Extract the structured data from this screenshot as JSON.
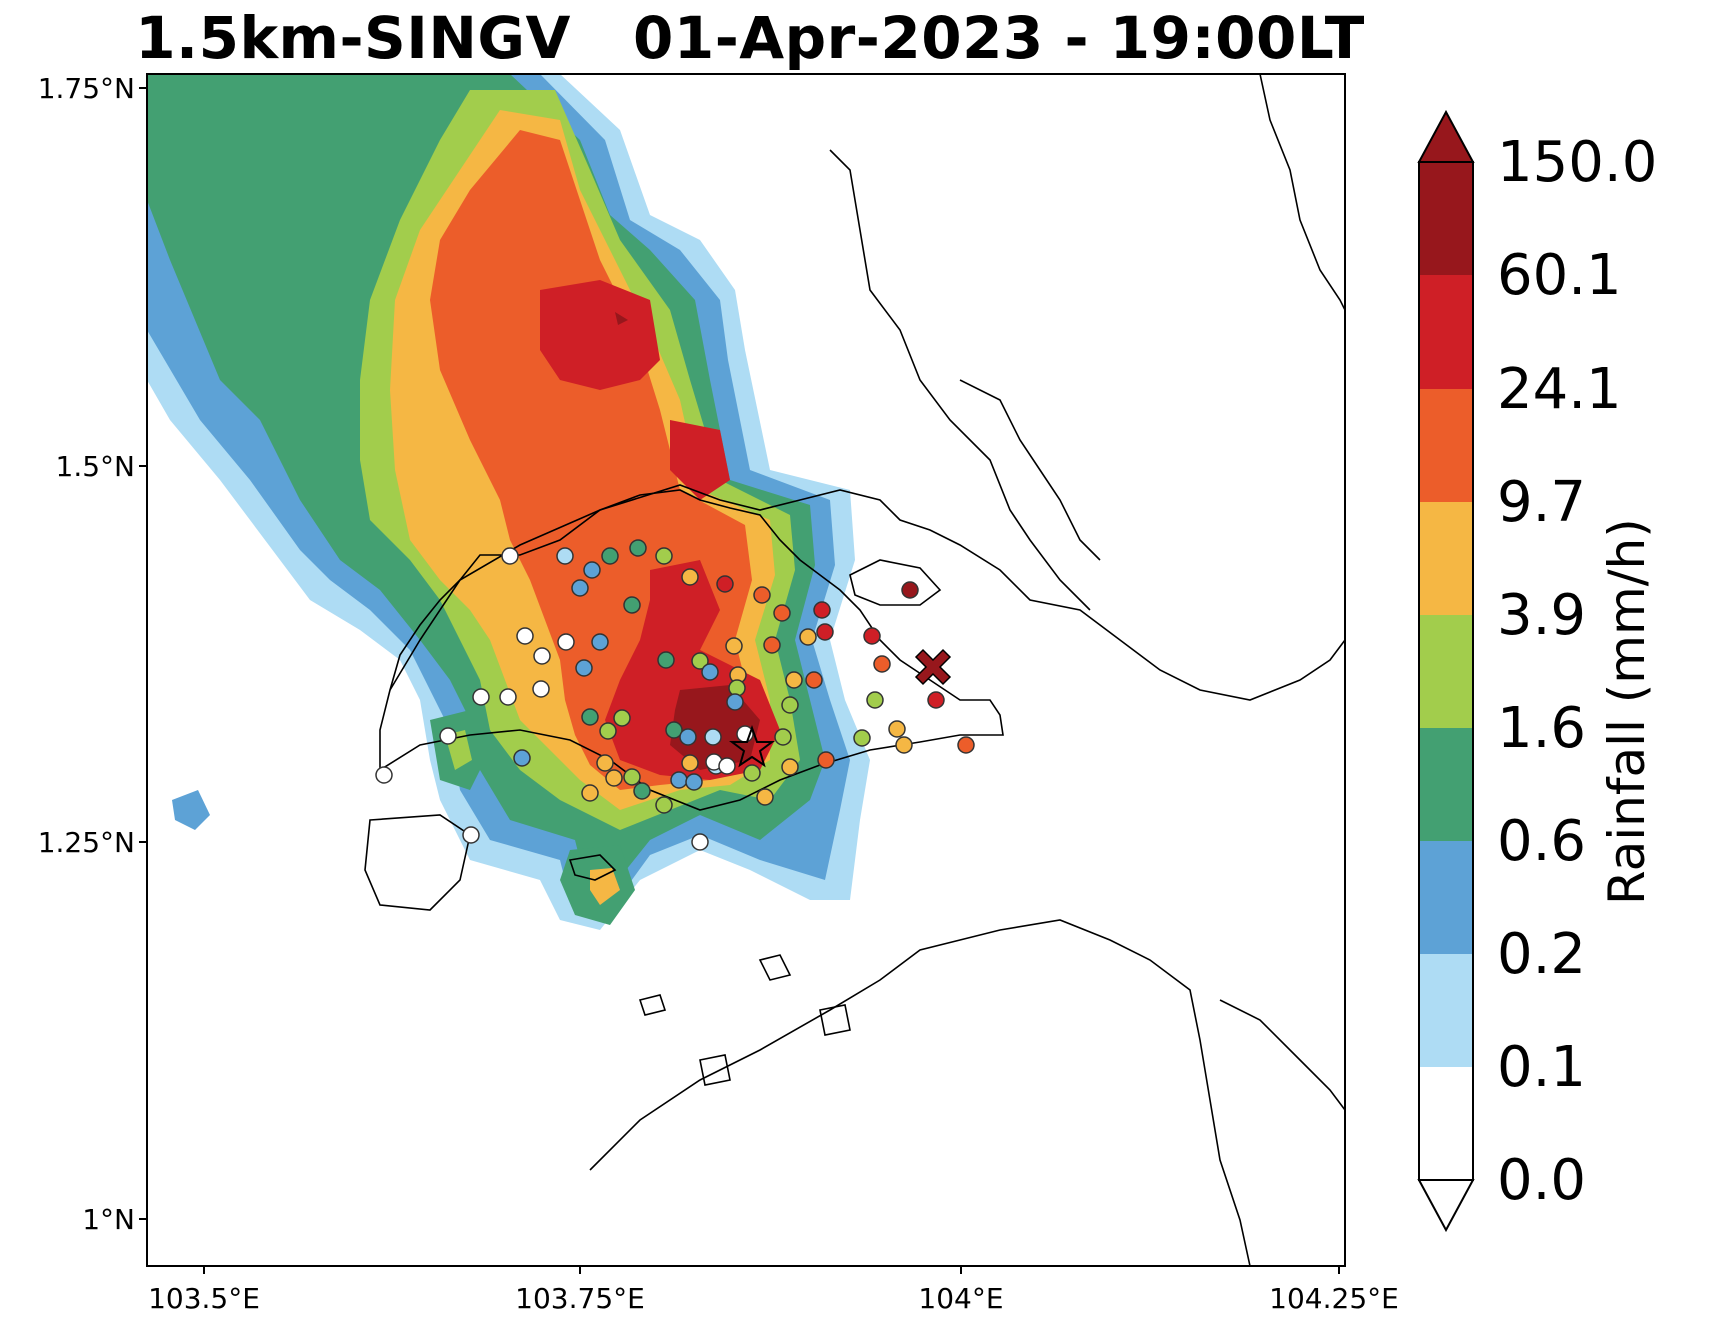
{
  "title": "1.5km-SINGV   01-Apr-2023 - 19:00LT",
  "map": {
    "lon_range": [
      103.43,
      104.25
    ],
    "lat_range": [
      0.97,
      1.76
    ],
    "lat_ticks": [
      {
        "value": 1.75,
        "label": "1.75°N"
      },
      {
        "value": 1.5,
        "label": "1.5°N"
      },
      {
        "value": 1.25,
        "label": "1.25°N"
      },
      {
        "value": 1.0,
        "label": "1°N"
      }
    ],
    "lon_ticks": [
      {
        "value": 103.5,
        "label": "103.5°E"
      },
      {
        "value": 103.75,
        "label": "103.75°E"
      },
      {
        "value": 104.0,
        "label": "104°E"
      },
      {
        "value": 104.25,
        "label": "104.25°E"
      }
    ]
  },
  "colorbar": {
    "title": "Rainfall (mm/h)",
    "levels": [
      "0.0",
      "0.1",
      "0.2",
      "0.6",
      "1.6",
      "3.9",
      "9.7",
      "24.1",
      "60.1",
      "150.0"
    ],
    "colors": [
      "#ffffff",
      "#aedcf4",
      "#5da2d6",
      "#43a072",
      "#a2cd4c",
      "#f5b744",
      "#ec5d2a",
      "#cf1f26",
      "#97171c"
    ],
    "extend_max_color": "#97171c",
    "extend_min_color": "#ffffff"
  },
  "stations_legend": {
    "star_marker": "max-rain-station-star",
    "cross_marker": "model-max-cross"
  }
}
